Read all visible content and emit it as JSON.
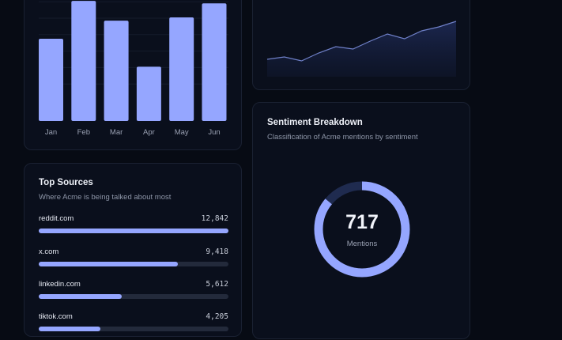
{
  "bar_chart": {
    "chart_data": {
      "type": "bar",
      "categories": [
        "Jan",
        "Feb",
        "Mar",
        "Apr",
        "May",
        "Jun"
      ],
      "values": [
        100,
        146,
        122,
        66,
        126,
        143
      ],
      "ylim": [
        0,
        150
      ],
      "grid": true,
      "color": "#95a6ff"
    }
  },
  "line_chart": {
    "chart_data": {
      "type": "area",
      "x": [
        1,
        2,
        3,
        4,
        5,
        6,
        7,
        8,
        9,
        10,
        11,
        12
      ],
      "y": [
        22,
        25,
        20,
        30,
        38,
        35,
        45,
        54,
        48,
        58,
        63,
        70
      ],
      "ylim": [
        0,
        90
      ],
      "color": "#6f80c8"
    }
  },
  "sources": {
    "title": "Top Sources",
    "subtitle": "Where Acme is being talked about most",
    "items": [
      {
        "name": "reddit.com",
        "count": "12,842",
        "share": 1.0
      },
      {
        "name": "x.com",
        "count": "9,418",
        "share": 0.733
      },
      {
        "name": "linkedin.com",
        "count": "5,612",
        "share": 0.437
      },
      {
        "name": "tiktok.com",
        "count": "4,205",
        "share": 0.327
      }
    ]
  },
  "sentiment": {
    "title": "Sentiment Breakdown",
    "subtitle": "Classification of Acme mentions by sentiment",
    "total": "717",
    "total_label": "Mentions",
    "chart_data": {
      "type": "pie",
      "values": [
        0.86,
        0.14
      ],
      "colors": [
        "#95a6ff",
        "#1f2b4f"
      ]
    }
  },
  "colors": {
    "background": "#070b14",
    "card": "#0a0f1c",
    "accent": "#95a6ff"
  }
}
